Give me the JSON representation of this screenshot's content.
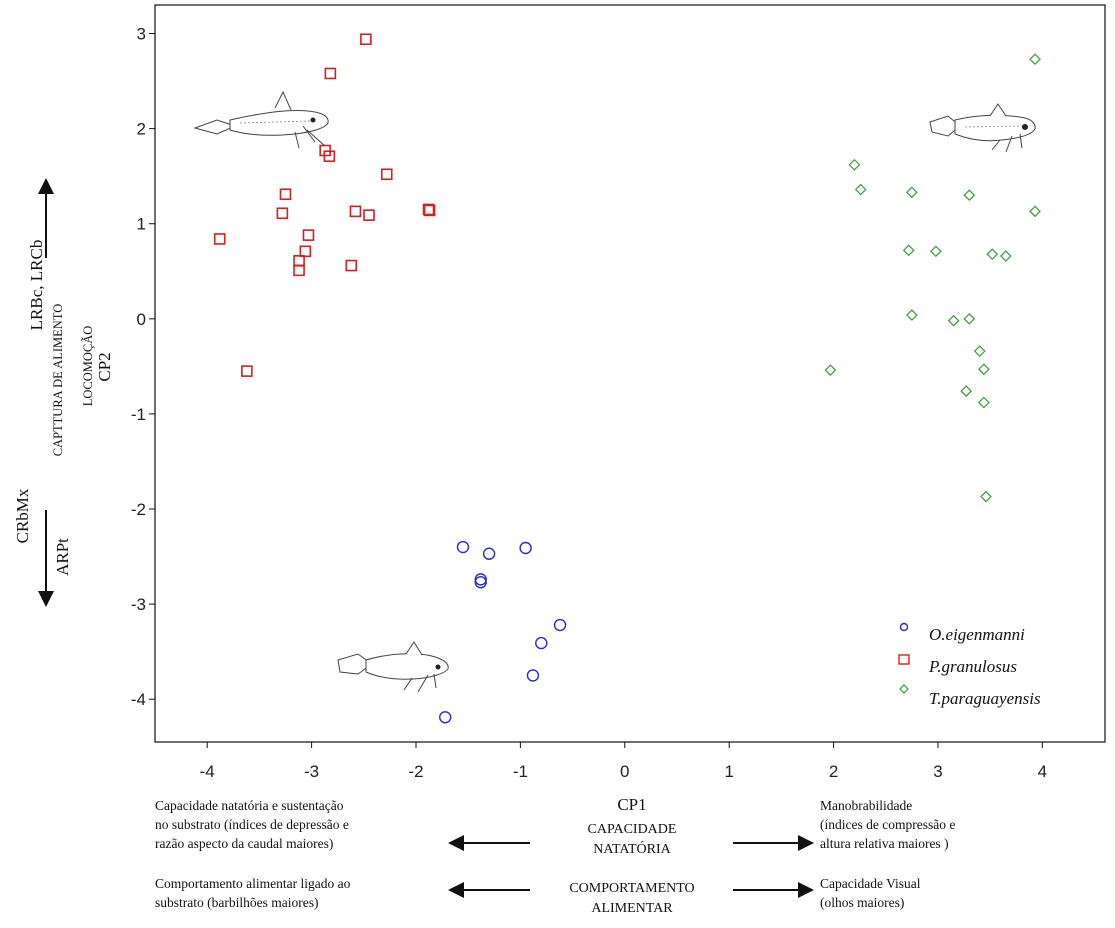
{
  "chart_data": {
    "type": "scatter",
    "xlabel": "CP1",
    "ylabel": "CP2",
    "xlim": [
      -4.5,
      4.6
    ],
    "ylim": [
      -4.45,
      3.3
    ],
    "xticks": [
      "-4",
      "-3",
      "-2",
      "-1",
      "0",
      "1",
      "2",
      "3",
      "4"
    ],
    "yticks": [
      "3",
      "2",
      "1",
      "0",
      "-1",
      "-2",
      "-3",
      "-4"
    ],
    "grid": false,
    "legend_position": "bottom-right",
    "series": [
      {
        "name": "O.eigenmanni",
        "marker": "circle",
        "color": "#2a2ad0",
        "points": [
          [
            -1.55,
            -2.4
          ],
          [
            -1.3,
            -2.47
          ],
          [
            -0.95,
            -2.41
          ],
          [
            -1.38,
            -2.74
          ],
          [
            -1.38,
            -2.77
          ],
          [
            -0.62,
            -3.22
          ],
          [
            -0.8,
            -3.41
          ],
          [
            -0.88,
            -3.75
          ],
          [
            -1.72,
            -4.19
          ]
        ]
      },
      {
        "name": "P.granulosus",
        "marker": "square",
        "color": "#d42020",
        "points": [
          [
            -2.48,
            2.94
          ],
          [
            -2.82,
            2.58
          ],
          [
            -2.87,
            1.77
          ],
          [
            -2.83,
            1.71
          ],
          [
            -2.28,
            1.52
          ],
          [
            -3.25,
            1.31
          ],
          [
            -3.28,
            1.11
          ],
          [
            -2.58,
            1.13
          ],
          [
            -2.45,
            1.09
          ],
          [
            -1.88,
            1.15
          ],
          [
            -1.87,
            1.14
          ],
          [
            -3.88,
            0.84
          ],
          [
            -3.03,
            0.88
          ],
          [
            -3.06,
            0.71
          ],
          [
            -3.12,
            0.61
          ],
          [
            -3.12,
            0.51
          ],
          [
            -2.62,
            0.56
          ],
          [
            -3.62,
            -0.55
          ]
        ]
      },
      {
        "name": "T.paraguayensis",
        "marker": "diamond",
        "color": "#3a9a3a",
        "points": [
          [
            3.93,
            2.73
          ],
          [
            2.2,
            1.62
          ],
          [
            2.26,
            1.36
          ],
          [
            2.75,
            1.33
          ],
          [
            3.3,
            1.3
          ],
          [
            3.93,
            1.13
          ],
          [
            2.72,
            0.72
          ],
          [
            2.98,
            0.71
          ],
          [
            3.52,
            0.68
          ],
          [
            3.65,
            0.66
          ],
          [
            2.75,
            0.04
          ],
          [
            3.15,
            -0.02
          ],
          [
            3.3,
            0.0
          ],
          [
            3.4,
            -0.34
          ],
          [
            3.44,
            -0.53
          ],
          [
            1.97,
            -0.54
          ],
          [
            3.27,
            -0.76
          ],
          [
            3.44,
            -0.88
          ],
          [
            3.46,
            -1.87
          ]
        ]
      }
    ]
  },
  "y_side": {
    "top_arrow_label": "LRBc, LRCb",
    "captura": "CAPTTURA DE ALIMENTO",
    "locomocao": "LOCOMOÇÃO",
    "bottom_label_1": "CRbMx",
    "bottom_label_2": "ARPt"
  },
  "x_side": {
    "natatoria_1": "CAPACIDADE",
    "natatoria_2": "NATATÓRIA",
    "alimentar_1": "COMPORTAMENTO",
    "alimentar_2": "ALIMENTAR",
    "note_left_top": "Capacidade natatória e sustentação\nno substrato (índices de depressão e\nrazão aspecto da caudal maiores)",
    "note_right_top": "Manobrabilidade\n(índices de compressão e\naltura relativa maiores )",
    "note_left_bottom": "Comportamento alimentar ligado ao\nsubstrato (barbilhões maiores)",
    "note_right_bottom": "Capacidade Visual\n(olhos maiores)"
  },
  "fish_icons": [
    "catfish-icon-red-group",
    "catfish-icon-green-group",
    "catfish-icon-blue-group"
  ]
}
